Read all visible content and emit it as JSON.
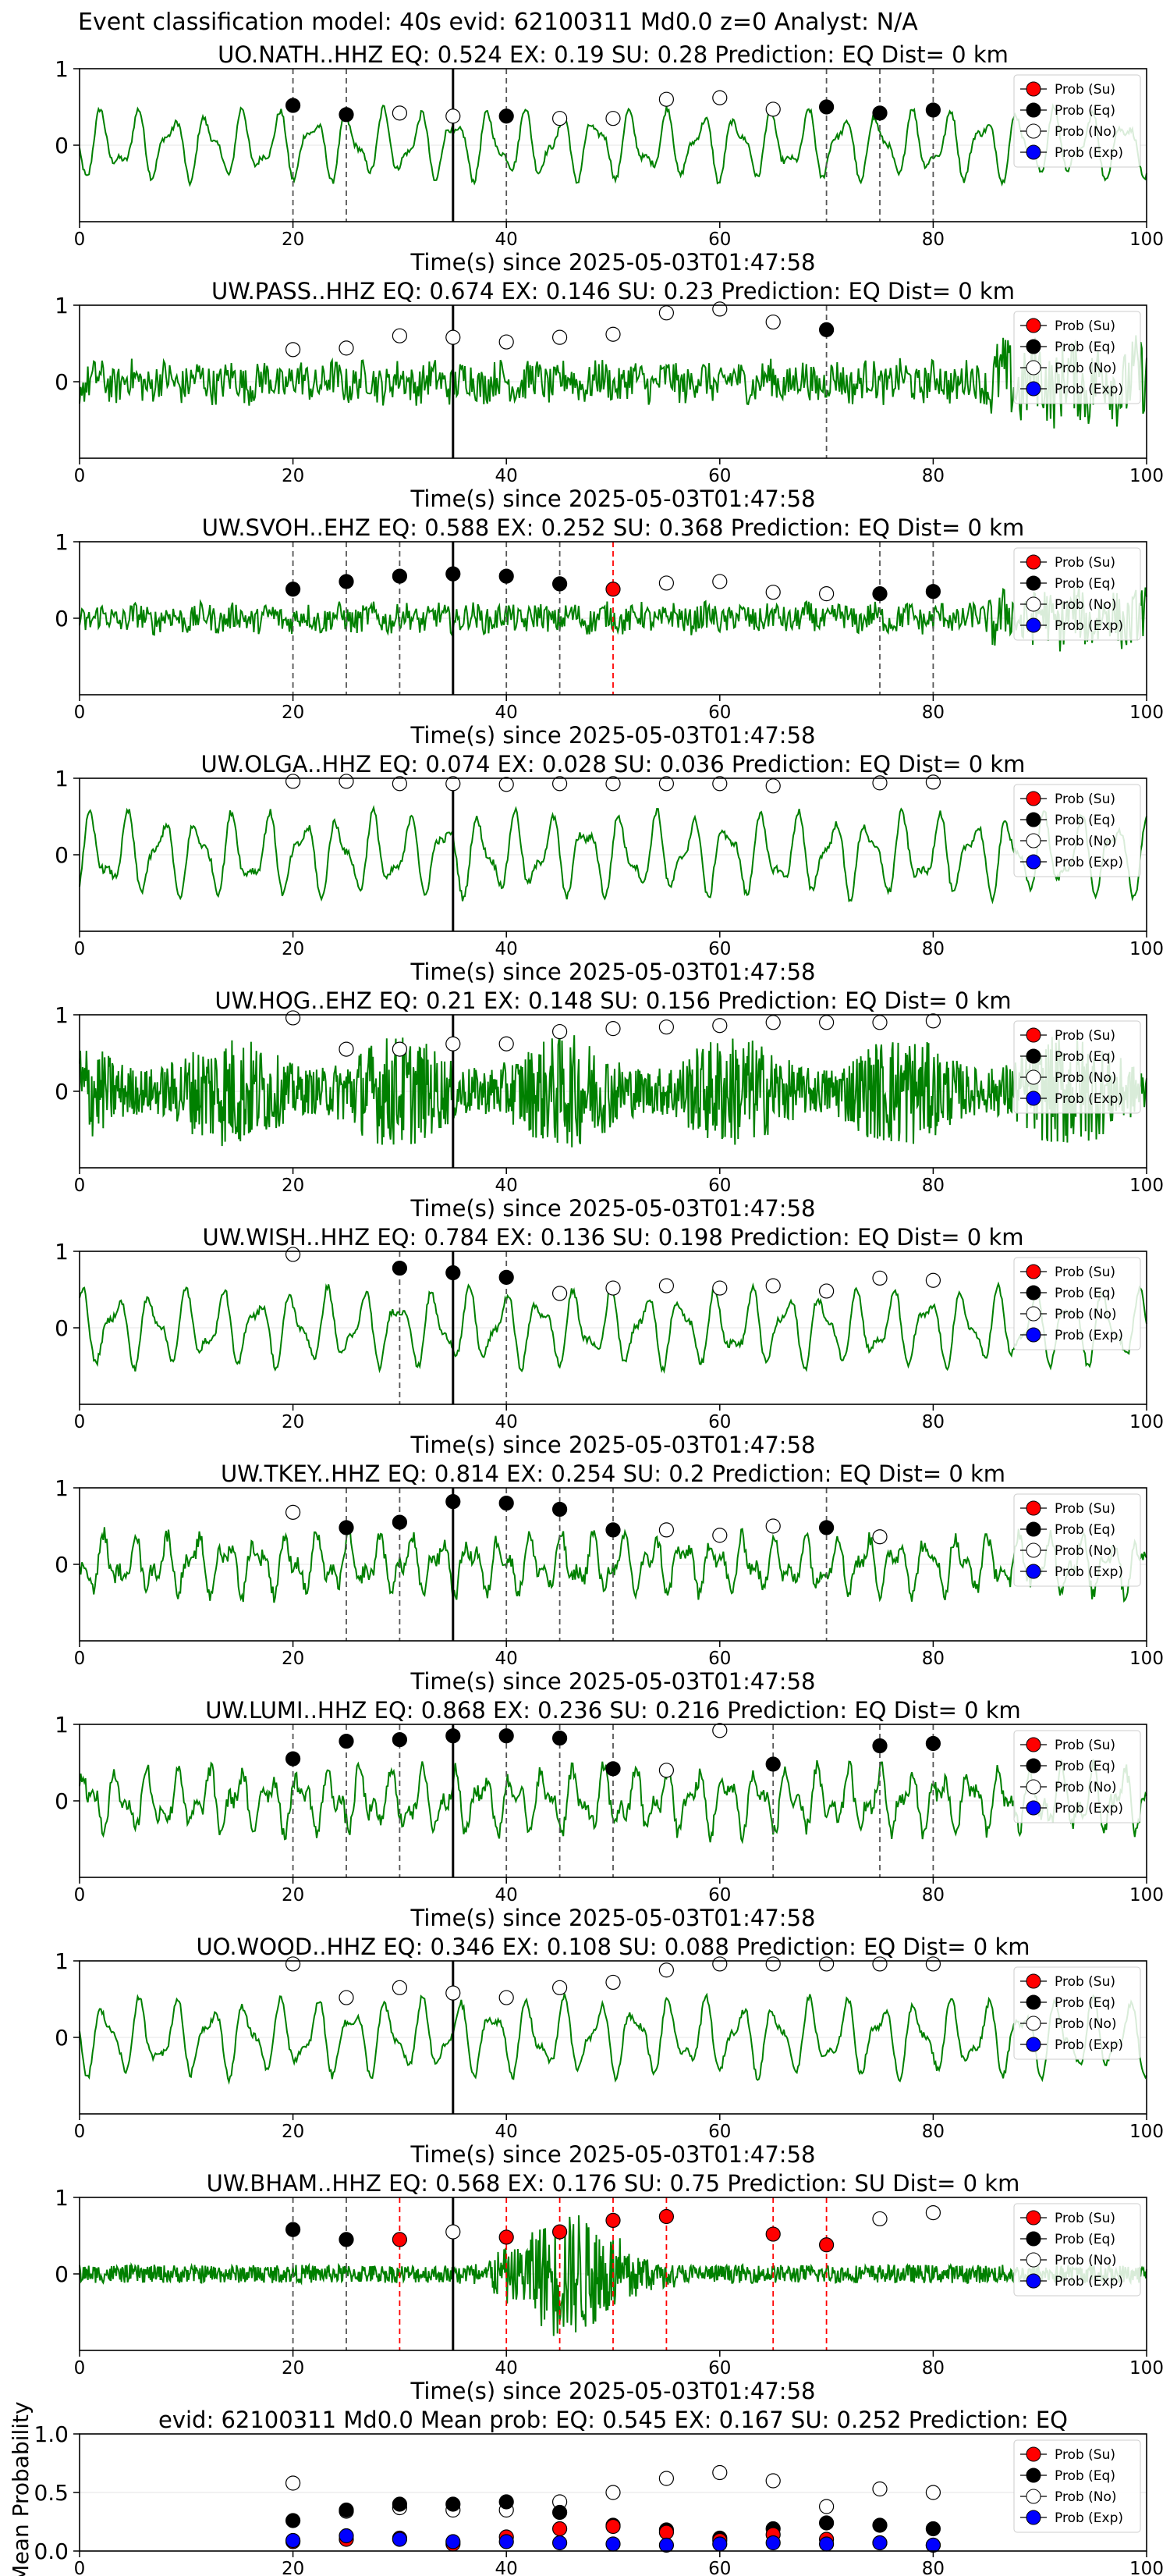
{
  "figure_title": "Event classification model: 40s evid: 62100311 Md0.0 z=0 Analyst: N/A",
  "colors": {
    "trace": "#008000",
    "su": "#ff0000",
    "eq": "#000000",
    "no": "#ffffff",
    "exp": "#0000ff",
    "arrival": "#000000"
  },
  "legend_labels": [
    "Prob (Su)",
    "Prob (Eq)",
    "Prob (No)",
    "Prob (Exp)"
  ],
  "x_tick_labels": [
    "0",
    "20",
    "40",
    "60",
    "80",
    "100"
  ],
  "y_tick_labels": [
    "1",
    "0"
  ],
  "xlabel": "Time(s) since 2025-05-03T01:47:58",
  "chart_data": [
    {
      "type": "line",
      "title": "UO.NATH..HHZ   EQ: 0.524  EX: 0.19  SU: 0.28   Prediction: EQ    Dist= 0 km",
      "xlim": [
        0,
        100
      ],
      "ylim": [
        -1,
        1
      ],
      "arrival": 35,
      "trace_style": "lowfreq",
      "amplitude": 0.55,
      "x": [
        20,
        25,
        30,
        35,
        40,
        45,
        50,
        55,
        60,
        65,
        70,
        75,
        80
      ],
      "prob": [
        0.52,
        0.4,
        0.42,
        0.38,
        0.38,
        0.35,
        0.35,
        0.6,
        0.62,
        0.47,
        0.5,
        0.42,
        0.46
      ],
      "cls": [
        "eq",
        "eq",
        "no",
        "no",
        "eq",
        "no",
        "no",
        "no",
        "no",
        "no",
        "eq",
        "eq",
        "eq"
      ]
    },
    {
      "type": "line",
      "title": "UW.PASS..HHZ   EQ: 0.674  EX: 0.146  SU: 0.23   Prediction: EQ    Dist= 0 km",
      "xlim": [
        0,
        100
      ],
      "ylim": [
        -1,
        1
      ],
      "arrival": 35,
      "trace_style": "noise",
      "amplitude": 0.35,
      "x": [
        20,
        25,
        30,
        35,
        40,
        45,
        50,
        55,
        60,
        65,
        70
      ],
      "prob": [
        0.42,
        0.44,
        0.6,
        0.58,
        0.52,
        0.58,
        0.62,
        0.9,
        0.95,
        0.78,
        0.68
      ],
      "cls": [
        "no",
        "no",
        "no",
        "no",
        "no",
        "no",
        "no",
        "no",
        "no",
        "no",
        "eq"
      ]
    },
    {
      "type": "line",
      "title": "UW.SVOH..EHZ   EQ: 0.588  EX: 0.252  SU: 0.368   Prediction: EQ    Dist= 0 km",
      "xlim": [
        0,
        100
      ],
      "ylim": [
        -1,
        1
      ],
      "arrival": 35,
      "trace_style": "noise",
      "amplitude": 0.25,
      "x": [
        20,
        25,
        30,
        35,
        40,
        45,
        50,
        55,
        60,
        65,
        70,
        75,
        80
      ],
      "prob": [
        0.38,
        0.48,
        0.55,
        0.58,
        0.55,
        0.45,
        0.38,
        0.46,
        0.48,
        0.34,
        0.32,
        0.32,
        0.35
      ],
      "cls": [
        "eq",
        "eq",
        "eq",
        "eq",
        "eq",
        "eq",
        "su",
        "no",
        "no",
        "no",
        "no",
        "eq",
        "eq"
      ]
    },
    {
      "type": "line",
      "title": "UW.OLGA..HHZ   EQ: 0.074  EX: 0.028  SU: 0.036   Prediction: EQ    Dist= 0 km",
      "xlim": [
        0,
        100
      ],
      "ylim": [
        -1,
        1
      ],
      "arrival": 35,
      "trace_style": "lowfreq",
      "amplitude": 0.65,
      "x": [
        20,
        25,
        30,
        35,
        40,
        45,
        50,
        55,
        60,
        65,
        75,
        80
      ],
      "prob": [
        0.96,
        0.96,
        0.93,
        0.93,
        0.92,
        0.93,
        0.93,
        0.93,
        0.93,
        0.9,
        0.94,
        0.95
      ],
      "cls": [
        "no",
        "no",
        "no",
        "no",
        "no",
        "no",
        "no",
        "no",
        "no",
        "no",
        "no",
        "no"
      ]
    },
    {
      "type": "line",
      "title": "UW.HOG..EHZ   EQ: 0.21  EX: 0.148  SU: 0.156   Prediction: EQ    Dist= 0 km",
      "xlim": [
        0,
        100
      ],
      "ylim": [
        -1,
        1
      ],
      "arrival": 35,
      "trace_style": "dense",
      "amplitude": 0.75,
      "x": [
        20,
        25,
        30,
        35,
        40,
        45,
        50,
        55,
        60,
        65,
        70,
        75,
        80
      ],
      "prob": [
        0.96,
        0.55,
        0.55,
        0.62,
        0.62,
        0.78,
        0.82,
        0.84,
        0.86,
        0.9,
        0.9,
        0.9,
        0.92
      ],
      "cls": [
        "no",
        "no",
        "no",
        "no",
        "no",
        "no",
        "no",
        "no",
        "no",
        "no",
        "no",
        "no",
        "no"
      ]
    },
    {
      "type": "line",
      "title": "UW.WISH..HHZ   EQ: 0.784  EX: 0.136  SU: 0.198   Prediction: EQ    Dist= 0 km",
      "xlim": [
        0,
        100
      ],
      "ylim": [
        -1,
        1
      ],
      "arrival": 35,
      "trace_style": "lowfreq",
      "amplitude": 0.6,
      "x": [
        20,
        30,
        35,
        40,
        45,
        50,
        55,
        60,
        65,
        70,
        75,
        80
      ],
      "prob": [
        0.96,
        0.78,
        0.72,
        0.66,
        0.45,
        0.52,
        0.55,
        0.52,
        0.55,
        0.48,
        0.65,
        0.62
      ],
      "cls": [
        "no",
        "eq",
        "eq",
        "eq",
        "no",
        "no",
        "no",
        "no",
        "no",
        "no",
        "no",
        "no"
      ]
    },
    {
      "type": "line",
      "title": "UW.TKEY..HHZ   EQ: 0.814  EX: 0.254  SU: 0.2   Prediction: EQ    Dist= 0 km",
      "xlim": [
        0,
        100
      ],
      "ylim": [
        -1,
        1
      ],
      "arrival": 35,
      "trace_style": "mixed",
      "amplitude": 0.5,
      "x": [
        20,
        25,
        30,
        35,
        40,
        45,
        50,
        55,
        60,
        65,
        70,
        75
      ],
      "prob": [
        0.68,
        0.48,
        0.55,
        0.82,
        0.8,
        0.72,
        0.45,
        0.45,
        0.38,
        0.5,
        0.48,
        0.36
      ],
      "cls": [
        "no",
        "eq",
        "eq",
        "eq",
        "eq",
        "eq",
        "eq",
        "no",
        "no",
        "no",
        "eq",
        "no"
      ]
    },
    {
      "type": "line",
      "title": "UW.LUMI..HHZ   EQ: 0.868  EX: 0.236  SU: 0.216   Prediction: EQ    Dist= 0 km",
      "xlim": [
        0,
        100
      ],
      "ylim": [
        -1,
        1
      ],
      "arrival": 35,
      "trace_style": "mixed",
      "amplitude": 0.55,
      "x": [
        20,
        25,
        30,
        35,
        40,
        45,
        50,
        55,
        60,
        65,
        75,
        80
      ],
      "prob": [
        0.55,
        0.78,
        0.8,
        0.85,
        0.85,
        0.82,
        0.42,
        0.4,
        0.92,
        0.48,
        0.72,
        0.75
      ],
      "cls": [
        "eq",
        "eq",
        "eq",
        "eq",
        "eq",
        "eq",
        "eq",
        "no",
        "no",
        "eq",
        "eq",
        "eq"
      ]
    },
    {
      "type": "line",
      "title": "UO.WOOD..HHZ   EQ: 0.346  EX: 0.108  SU: 0.088   Prediction: EQ    Dist= 0 km",
      "xlim": [
        0,
        100
      ],
      "ylim": [
        -1,
        1
      ],
      "arrival": 35,
      "trace_style": "lowfreq",
      "amplitude": 0.6,
      "x": [
        20,
        25,
        30,
        35,
        40,
        45,
        50,
        55,
        60,
        65,
        70,
        75,
        80
      ],
      "prob": [
        0.96,
        0.52,
        0.65,
        0.58,
        0.52,
        0.65,
        0.72,
        0.88,
        0.96,
        0.96,
        0.96,
        0.96,
        0.96
      ],
      "cls": [
        "no",
        "no",
        "no",
        "no",
        "no",
        "no",
        "no",
        "no",
        "no",
        "no",
        "no",
        "no",
        "no"
      ]
    },
    {
      "type": "line",
      "title": "UW.BHAM..HHZ   EQ: 0.568  EX: 0.176  SU: 0.75   Prediction: SU    Dist= 0 km",
      "xlim": [
        0,
        100
      ],
      "ylim": [
        -1,
        1
      ],
      "arrival": 35,
      "trace_style": "burst",
      "amplitude": 0.3,
      "x": [
        20,
        25,
        30,
        35,
        40,
        45,
        50,
        55,
        65,
        70,
        75,
        80
      ],
      "prob": [
        0.58,
        0.45,
        0.45,
        0.55,
        0.48,
        0.55,
        0.7,
        0.75,
        0.52,
        0.38,
        0.72,
        0.8
      ],
      "cls": [
        "eq",
        "eq",
        "su",
        "no",
        "su",
        "su",
        "su",
        "su",
        "su",
        "su",
        "no",
        "no"
      ]
    },
    {
      "type": "scatter",
      "title": "evid: 62100311  Md0.0   Mean prob:   EQ: 0.545  EX: 0.167  SU: 0.252   Prediction: EQ",
      "ylabel": "Mean Probability",
      "xlim": [
        0,
        100
      ],
      "ylim": [
        0,
        1
      ],
      "y_tick_labels": [
        "1.0",
        "0.5",
        "0.0"
      ],
      "x": [
        20,
        25,
        30,
        35,
        40,
        45,
        50,
        55,
        60,
        65,
        70,
        75,
        80
      ],
      "series": [
        {
          "cls": "no",
          "values": [
            0.58,
            0.34,
            0.37,
            0.35,
            0.35,
            0.42,
            0.5,
            0.62,
            0.67,
            0.6,
            0.38,
            0.53,
            0.5
          ]
        },
        {
          "cls": "eq",
          "values": [
            0.26,
            0.35,
            0.4,
            0.4,
            0.42,
            0.33,
            0.22,
            0.18,
            0.11,
            0.19,
            0.24,
            0.22,
            0.19
          ]
        },
        {
          "cls": "su",
          "values": [
            0.08,
            0.1,
            0.11,
            0.06,
            0.12,
            0.19,
            0.21,
            0.16,
            0.09,
            0.14,
            0.1,
            0.07,
            0.05
          ]
        },
        {
          "cls": "exp",
          "values": [
            0.09,
            0.13,
            0.1,
            0.08,
            0.08,
            0.07,
            0.06,
            0.05,
            0.06,
            0.07,
            0.06,
            0.07,
            0.05
          ]
        }
      ]
    }
  ]
}
